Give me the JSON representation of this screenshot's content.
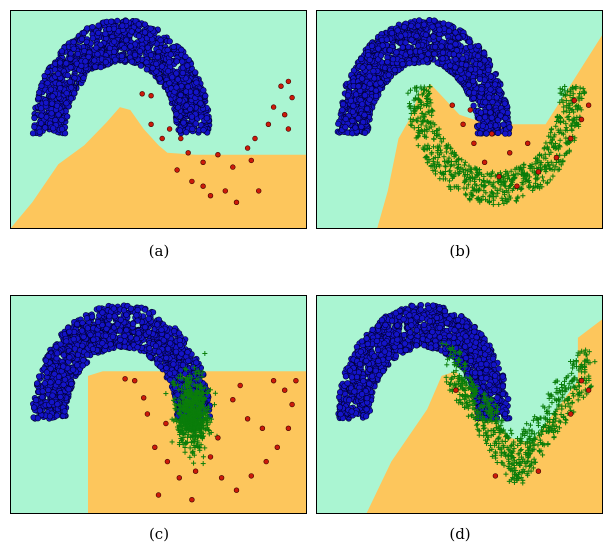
{
  "colors": {
    "region_a": "#aaf5d2",
    "region_b": "#fdc65c",
    "class_a_fill": "#1414c8",
    "class_a_edge": "#000033",
    "class_b_fill": "#cc1a0a",
    "class_b_edge": "#400000",
    "generated": "#0a7d0a",
    "frame": "#000000"
  },
  "chart_data": [
    {
      "type": "scatter",
      "caption": "(a)",
      "xlim": [
        -1.5,
        2.5
      ],
      "ylim": [
        -1.0,
        1.3
      ],
      "grid": false,
      "boundary_shape": "smooth-bump",
      "series": [
        {
          "marker": "circle",
          "color": "#1414c8",
          "shape": {
            "kind": "arc",
            "center": [
              0.0,
              0.0
            ],
            "r_inner": 0.75,
            "r_outer": 1.2,
            "theta_deg": [
              0,
              180
            ],
            "n": 1400
          }
        },
        {
          "marker": "circle",
          "color": "#cc1a0a",
          "points": [
            [
              0.28,
              0.42
            ],
            [
              0.4,
              0.4
            ],
            [
              2.25,
              0.55
            ],
            [
              2.15,
              0.5
            ],
            [
              2.3,
              0.38
            ],
            [
              2.05,
              0.28
            ],
            [
              2.2,
              0.2
            ],
            [
              1.98,
              0.1
            ],
            [
              2.25,
              0.05
            ],
            [
              1.8,
              -0.05
            ],
            [
              1.7,
              -0.15
            ],
            [
              0.4,
              0.1
            ],
            [
              0.65,
              0.05
            ],
            [
              0.55,
              -0.05
            ],
            [
              0.8,
              -0.05
            ],
            [
              0.9,
              -0.2
            ],
            [
              1.1,
              -0.3
            ],
            [
              1.3,
              -0.22
            ],
            [
              1.5,
              -0.35
            ],
            [
              1.75,
              -0.28
            ],
            [
              0.95,
              -0.5
            ],
            [
              1.1,
              -0.55
            ],
            [
              1.2,
              -0.65
            ],
            [
              1.4,
              -0.6
            ],
            [
              1.55,
              -0.72
            ],
            [
              1.85,
              -0.6
            ],
            [
              0.75,
              -0.38
            ]
          ]
        }
      ]
    },
    {
      "type": "scatter",
      "caption": "(b)",
      "xlim": [
        -1.5,
        2.5
      ],
      "ylim": [
        -1.0,
        1.3
      ],
      "grid": false,
      "boundary_shape": "wedge",
      "series": [
        {
          "marker": "circle",
          "color": "#1414c8",
          "shape": {
            "kind": "arc",
            "center": [
              0.0,
              0.0
            ],
            "r_inner": 0.75,
            "r_outer": 1.2,
            "theta_deg": [
              0,
              180
            ],
            "n": 1400
          }
        },
        {
          "marker": "plus",
          "color": "#0a7d0a",
          "shape": {
            "kind": "lower-arc",
            "center": [
              1.0,
              0.5
            ],
            "r_inner": 0.9,
            "r_outer": 1.25,
            "theta_deg": [
              180,
              360
            ],
            "n": 700
          }
        },
        {
          "marker": "circle",
          "color": "#cc1a0a",
          "points": [
            [
              0.4,
              0.3
            ],
            [
              0.55,
              0.1
            ],
            [
              0.7,
              -0.1
            ],
            [
              0.85,
              -0.3
            ],
            [
              1.05,
              -0.45
            ],
            [
              1.3,
              -0.55
            ],
            [
              1.6,
              -0.4
            ],
            [
              1.85,
              -0.25
            ],
            [
              2.05,
              -0.05
            ],
            [
              2.2,
              0.15
            ],
            [
              2.3,
              0.3
            ],
            [
              2.1,
              0.35
            ],
            [
              1.2,
              -0.2
            ],
            [
              1.45,
              -0.1
            ],
            [
              0.95,
              0.0
            ],
            [
              0.65,
              0.25
            ]
          ]
        }
      ]
    },
    {
      "type": "scatter",
      "caption": "(c)",
      "xlim": [
        -1.5,
        2.5
      ],
      "ylim": [
        -1.0,
        1.3
      ],
      "grid": false,
      "boundary_shape": "rectangle",
      "series": [
        {
          "marker": "circle",
          "color": "#1414c8",
          "shape": {
            "kind": "arc",
            "center": [
              0.0,
              0.0
            ],
            "r_inner": 0.75,
            "r_outer": 1.2,
            "theta_deg": [
              0,
              180
            ],
            "n": 1400
          }
        },
        {
          "marker": "plus",
          "color": "#0a7d0a",
          "shape": {
            "kind": "blob",
            "center": [
              0.95,
              0.05
            ],
            "sx": 0.22,
            "sy": 0.3,
            "n": 600
          }
        },
        {
          "marker": "circle",
          "color": "#cc1a0a",
          "points": [
            [
              0.05,
              0.42
            ],
            [
              0.18,
              0.4
            ],
            [
              0.3,
              0.22
            ],
            [
              0.35,
              0.05
            ],
            [
              0.6,
              -0.05
            ],
            [
              0.45,
              -0.3
            ],
            [
              0.62,
              -0.45
            ],
            [
              0.78,
              -0.62
            ],
            [
              1.0,
              -0.55
            ],
            [
              1.2,
              -0.4
            ],
            [
              1.35,
              -0.62
            ],
            [
              1.55,
              -0.75
            ],
            [
              1.75,
              -0.6
            ],
            [
              1.95,
              -0.45
            ],
            [
              2.1,
              -0.3
            ],
            [
              2.25,
              -0.1
            ],
            [
              2.3,
              0.15
            ],
            [
              2.2,
              0.3
            ],
            [
              2.05,
              0.4
            ],
            [
              1.5,
              0.2
            ],
            [
              1.7,
              0.0
            ],
            [
              1.9,
              -0.1
            ],
            [
              0.5,
              -0.8
            ],
            [
              0.95,
              -0.85
            ],
            [
              1.3,
              -0.2
            ],
            [
              1.6,
              0.35
            ],
            [
              2.35,
              0.4
            ]
          ]
        }
      ]
    },
    {
      "type": "scatter",
      "caption": "(d)",
      "xlim": [
        -1.5,
        2.5
      ],
      "ylim": [
        -1.0,
        1.3
      ],
      "grid": false,
      "boundary_shape": "valley",
      "series": [
        {
          "marker": "circle",
          "color": "#1414c8",
          "shape": {
            "kind": "arc",
            "center": [
              0.0,
              0.0
            ],
            "r_inner": 0.75,
            "r_outer": 1.2,
            "theta_deg": [
              0,
              180
            ],
            "n": 1400
          }
        },
        {
          "marker": "plus",
          "color": "#0a7d0a",
          "shape": {
            "kind": "v-band",
            "from": [
              0.35,
              0.35
            ],
            "bottom": [
              1.3,
              -0.7
            ],
            "to": [
              2.3,
              0.35
            ],
            "n": 650
          }
        },
        {
          "marker": "circle",
          "color": "#cc1a0a",
          "points": [
            [
              0.45,
              0.3
            ],
            [
              2.2,
              0.4
            ],
            [
              2.3,
              0.3
            ],
            [
              1.0,
              -0.6
            ],
            [
              1.6,
              -0.55
            ],
            [
              2.05,
              0.05
            ]
          ]
        }
      ]
    }
  ]
}
